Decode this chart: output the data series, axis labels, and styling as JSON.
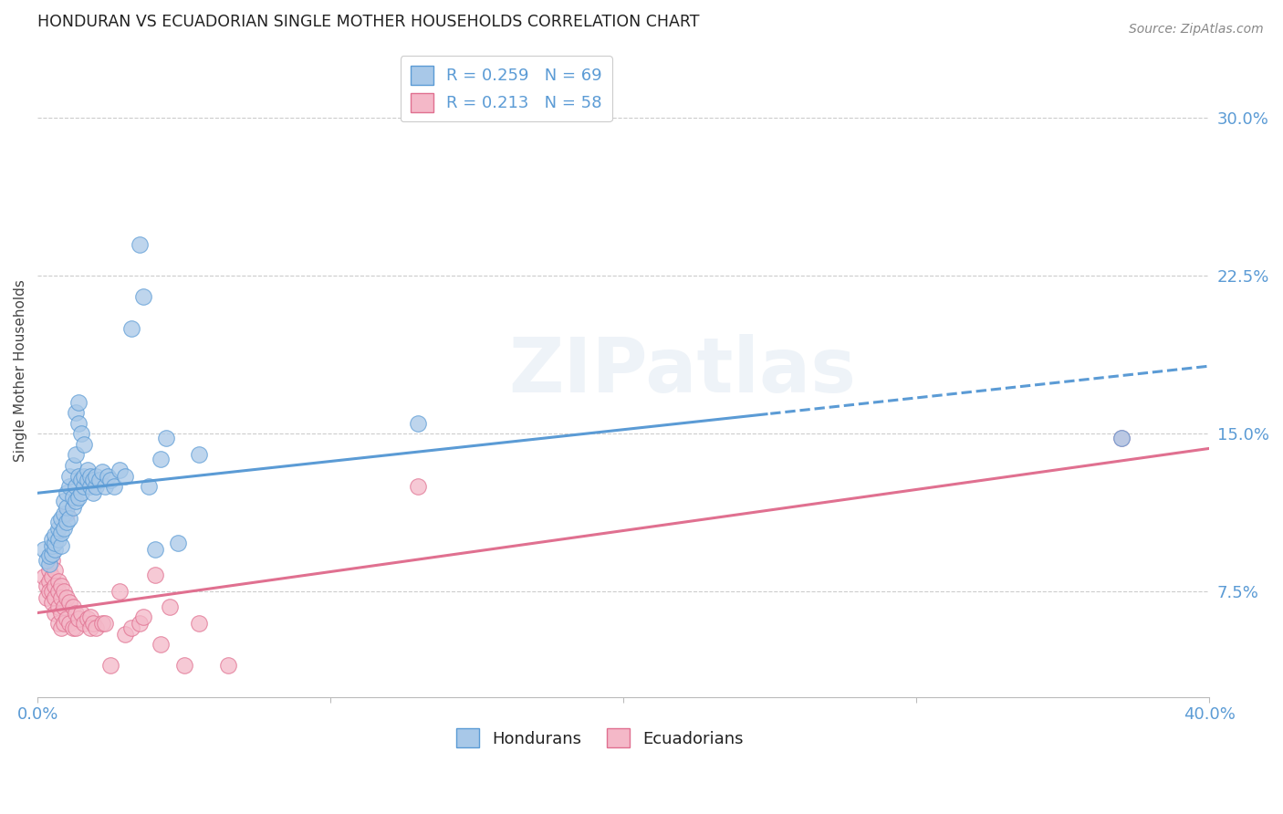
{
  "title": "HONDURAN VS ECUADORIAN SINGLE MOTHER HOUSEHOLDS CORRELATION CHART",
  "source": "Source: ZipAtlas.com",
  "ylabel": "Single Mother Households",
  "yticks": [
    "7.5%",
    "15.0%",
    "22.5%",
    "30.0%"
  ],
  "ytick_vals": [
    0.075,
    0.15,
    0.225,
    0.3
  ],
  "xlim": [
    0.0,
    0.4
  ],
  "ylim": [
    0.025,
    0.335
  ],
  "honduran_color": "#a8c8e8",
  "honduran_edge": "#5b9bd5",
  "ecuadorian_color": "#f4b8c8",
  "ecuadorian_edge": "#e07090",
  "honduran_scatter": [
    [
      0.002,
      0.095
    ],
    [
      0.003,
      0.09
    ],
    [
      0.004,
      0.088
    ],
    [
      0.004,
      0.092
    ],
    [
      0.005,
      0.093
    ],
    [
      0.005,
      0.097
    ],
    [
      0.005,
      0.1
    ],
    [
      0.006,
      0.095
    ],
    [
      0.006,
      0.098
    ],
    [
      0.006,
      0.102
    ],
    [
      0.007,
      0.1
    ],
    [
      0.007,
      0.105
    ],
    [
      0.007,
      0.108
    ],
    [
      0.008,
      0.097
    ],
    [
      0.008,
      0.103
    ],
    [
      0.008,
      0.11
    ],
    [
      0.009,
      0.105
    ],
    [
      0.009,
      0.112
    ],
    [
      0.009,
      0.118
    ],
    [
      0.01,
      0.108
    ],
    [
      0.01,
      0.115
    ],
    [
      0.01,
      0.122
    ],
    [
      0.011,
      0.11
    ],
    [
      0.011,
      0.125
    ],
    [
      0.011,
      0.13
    ],
    [
      0.012,
      0.115
    ],
    [
      0.012,
      0.12
    ],
    [
      0.012,
      0.135
    ],
    [
      0.013,
      0.118
    ],
    [
      0.013,
      0.125
    ],
    [
      0.013,
      0.14
    ],
    [
      0.013,
      0.16
    ],
    [
      0.014,
      0.12
    ],
    [
      0.014,
      0.13
    ],
    [
      0.014,
      0.155
    ],
    [
      0.014,
      0.165
    ],
    [
      0.015,
      0.122
    ],
    [
      0.015,
      0.128
    ],
    [
      0.015,
      0.15
    ],
    [
      0.016,
      0.125
    ],
    [
      0.016,
      0.13
    ],
    [
      0.016,
      0.145
    ],
    [
      0.017,
      0.128
    ],
    [
      0.017,
      0.133
    ],
    [
      0.018,
      0.125
    ],
    [
      0.018,
      0.13
    ],
    [
      0.019,
      0.122
    ],
    [
      0.019,
      0.128
    ],
    [
      0.02,
      0.125
    ],
    [
      0.02,
      0.13
    ],
    [
      0.021,
      0.128
    ],
    [
      0.022,
      0.132
    ],
    [
      0.023,
      0.125
    ],
    [
      0.024,
      0.13
    ],
    [
      0.025,
      0.128
    ],
    [
      0.026,
      0.125
    ],
    [
      0.028,
      0.133
    ],
    [
      0.03,
      0.13
    ],
    [
      0.032,
      0.2
    ],
    [
      0.035,
      0.24
    ],
    [
      0.036,
      0.215
    ],
    [
      0.038,
      0.125
    ],
    [
      0.04,
      0.095
    ],
    [
      0.042,
      0.138
    ],
    [
      0.044,
      0.148
    ],
    [
      0.048,
      0.098
    ],
    [
      0.055,
      0.14
    ],
    [
      0.13,
      0.155
    ],
    [
      0.37,
      0.148
    ]
  ],
  "ecuadorian_scatter": [
    [
      0.002,
      0.082
    ],
    [
      0.003,
      0.078
    ],
    [
      0.003,
      0.072
    ],
    [
      0.004,
      0.085
    ],
    [
      0.004,
      0.08
    ],
    [
      0.004,
      0.075
    ],
    [
      0.005,
      0.09
    ],
    [
      0.005,
      0.082
    ],
    [
      0.005,
      0.075
    ],
    [
      0.005,
      0.07
    ],
    [
      0.006,
      0.085
    ],
    [
      0.006,
      0.078
    ],
    [
      0.006,
      0.072
    ],
    [
      0.006,
      0.065
    ],
    [
      0.007,
      0.08
    ],
    [
      0.007,
      0.075
    ],
    [
      0.007,
      0.068
    ],
    [
      0.007,
      0.06
    ],
    [
      0.008,
      0.078
    ],
    [
      0.008,
      0.072
    ],
    [
      0.008,
      0.065
    ],
    [
      0.008,
      0.058
    ],
    [
      0.009,
      0.075
    ],
    [
      0.009,
      0.068
    ],
    [
      0.009,
      0.06
    ],
    [
      0.01,
      0.112
    ],
    [
      0.01,
      0.072
    ],
    [
      0.01,
      0.062
    ],
    [
      0.011,
      0.07
    ],
    [
      0.011,
      0.06
    ],
    [
      0.012,
      0.068
    ],
    [
      0.012,
      0.058
    ],
    [
      0.013,
      0.065
    ],
    [
      0.013,
      0.058
    ],
    [
      0.014,
      0.062
    ],
    [
      0.015,
      0.065
    ],
    [
      0.016,
      0.06
    ],
    [
      0.017,
      0.062
    ],
    [
      0.018,
      0.063
    ],
    [
      0.018,
      0.058
    ],
    [
      0.019,
      0.06
    ],
    [
      0.02,
      0.058
    ],
    [
      0.022,
      0.06
    ],
    [
      0.023,
      0.06
    ],
    [
      0.025,
      0.04
    ],
    [
      0.028,
      0.075
    ],
    [
      0.03,
      0.055
    ],
    [
      0.032,
      0.058
    ],
    [
      0.035,
      0.06
    ],
    [
      0.036,
      0.063
    ],
    [
      0.04,
      0.083
    ],
    [
      0.042,
      0.05
    ],
    [
      0.045,
      0.068
    ],
    [
      0.05,
      0.04
    ],
    [
      0.055,
      0.06
    ],
    [
      0.065,
      0.04
    ],
    [
      0.13,
      0.125
    ],
    [
      0.37,
      0.148
    ]
  ],
  "honduran_R": 0.259,
  "honduran_N": 69,
  "ecuadorian_R": 0.213,
  "ecuadorian_N": 58,
  "watermark": "ZIPatlas",
  "legend_label_hondurans": "Hondurans",
  "legend_label_ecuadorians": "Ecuadorians",
  "trend_blue_solid_color": "#5b9bd5",
  "trend_pink_solid_color": "#e07090",
  "grid_color": "#cccccc",
  "tick_color": "#5b9bd5",
  "background_color": "#ffffff"
}
